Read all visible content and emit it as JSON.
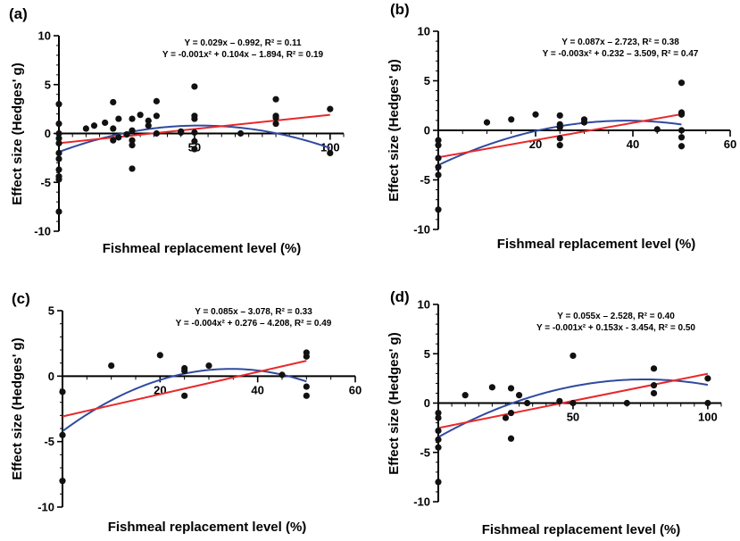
{
  "colors": {
    "linear": "#e8282a",
    "quadratic": "#2f4aa0",
    "points": "#111111",
    "axis": "#000000"
  },
  "chart_data": [
    {
      "panel": "(a)",
      "type": "scatter",
      "xlabel": "Fishmeal replacement level (%)",
      "ylabel": "Effect size (Hedges' g)",
      "xlim": [
        0,
        105
      ],
      "ylim": [
        -10,
        10
      ],
      "xticks": [
        50,
        100
      ],
      "yticks": [
        -10,
        -5,
        0,
        5,
        10
      ],
      "equations": [
        "Y = 0.029x – 0.992, R² = 0.11",
        "Y = -0.001x² + 0.104x – 1.894, R² = 0.19"
      ],
      "linear": {
        "a": 0.029,
        "b": -0.992
      },
      "quadratic": {
        "a": -0.001,
        "b": 0.104,
        "c": -1.894
      },
      "points": [
        [
          0,
          3
        ],
        [
          0,
          1
        ],
        [
          0,
          0
        ],
        [
          0,
          -0.5
        ],
        [
          0,
          -1
        ],
        [
          0,
          -2
        ],
        [
          0,
          -2.6
        ],
        [
          0,
          -3.7
        ],
        [
          0,
          -4.4
        ],
        [
          0,
          -4.7
        ],
        [
          0,
          -8
        ],
        [
          10,
          0.5
        ],
        [
          13,
          0.8
        ],
        [
          17,
          1.1
        ],
        [
          20,
          3.2
        ],
        [
          20,
          -0.7
        ],
        [
          20,
          0.5
        ],
        [
          22,
          1.5
        ],
        [
          22,
          -0.4
        ],
        [
          25,
          -0.1
        ],
        [
          27,
          1.5
        ],
        [
          27,
          0.3
        ],
        [
          27,
          -0.7
        ],
        [
          27,
          -1.2
        ],
        [
          27,
          -3.6
        ],
        [
          30,
          1.9
        ],
        [
          33,
          1.3
        ],
        [
          33,
          0.8
        ],
        [
          36,
          3.3
        ],
        [
          36,
          1.8
        ],
        [
          36,
          0
        ],
        [
          45,
          0.1
        ],
        [
          45,
          0.2
        ],
        [
          50,
          4.8
        ],
        [
          50,
          1.8
        ],
        [
          50,
          1.5
        ],
        [
          50,
          0.1
        ],
        [
          50,
          -0.8
        ],
        [
          50,
          -1.6
        ],
        [
          67,
          0
        ],
        [
          80,
          3.5
        ],
        [
          80,
          1.8
        ],
        [
          80,
          1.6
        ],
        [
          80,
          1
        ],
        [
          100,
          2.5
        ],
        [
          100,
          -2
        ]
      ]
    },
    {
      "panel": "(b)",
      "type": "scatter",
      "xlabel": "Fishmeal replacement level (%)",
      "ylabel": "Effect size (Hedges' g)",
      "xlim": [
        0,
        60
      ],
      "ylim": [
        -10,
        10
      ],
      "xticks": [
        20,
        40,
        60
      ],
      "yticks": [
        -10,
        -5,
        0,
        5,
        10
      ],
      "equations": [
        "Y = 0.087x – 2.723, R² = 0.38",
        "Y = -0.003x² + 0.232 – 3.509, R² = 0.47"
      ],
      "linear": {
        "a": 0.087,
        "b": -2.723
      },
      "quadratic": {
        "a": -0.003,
        "b": 0.232,
        "c": -3.509
      },
      "points": [
        [
          0,
          -1
        ],
        [
          0,
          -1.5
        ],
        [
          0,
          -2.8
        ],
        [
          0,
          -3.7
        ],
        [
          0,
          -4.5
        ],
        [
          0,
          -8
        ],
        [
          10,
          0.8
        ],
        [
          15,
          1.1
        ],
        [
          20,
          1.6
        ],
        [
          25,
          1.5
        ],
        [
          25,
          0.6
        ],
        [
          25,
          0.3
        ],
        [
          25,
          -0.8
        ],
        [
          25,
          -1.5
        ],
        [
          30,
          1.1
        ],
        [
          30,
          0.8
        ],
        [
          45,
          0.1
        ],
        [
          50,
          4.8
        ],
        [
          50,
          1.8
        ],
        [
          50,
          1.6
        ],
        [
          50,
          0
        ],
        [
          50,
          -0.7
        ],
        [
          50,
          -1.6
        ]
      ]
    },
    {
      "panel": "(c)",
      "type": "scatter",
      "xlabel": "Fishmeal replacement level (%)",
      "ylabel": "Effect size (Hedges' g)",
      "xlim": [
        0,
        60
      ],
      "ylim": [
        -10,
        5
      ],
      "xticks": [
        20,
        40,
        60
      ],
      "yticks": [
        -10,
        -5,
        0,
        5
      ],
      "equations": [
        "Y = 0.085x – 3.078, R² = 0.33",
        "Y = -0.004x² + 0.276 – 4.208, R² = 0.49"
      ],
      "linear": {
        "a": 0.085,
        "b": -3.078
      },
      "quadratic": {
        "a": -0.004,
        "b": 0.276,
        "c": -4.208
      },
      "points": [
        [
          0,
          -1.2
        ],
        [
          0,
          -4.5
        ],
        [
          0,
          -8
        ],
        [
          10,
          0.8
        ],
        [
          20,
          1.6
        ],
        [
          25,
          0.6
        ],
        [
          25,
          0.4
        ],
        [
          25,
          -1.5
        ],
        [
          30,
          0.8
        ],
        [
          45,
          0.1
        ],
        [
          50,
          1.8
        ],
        [
          50,
          1.5
        ],
        [
          50,
          -0.8
        ],
        [
          50,
          -1.5
        ]
      ]
    },
    {
      "panel": "(d)",
      "type": "scatter",
      "xlabel": "Fishmeal replacement level (%)",
      "ylabel": "Effect size (Hedges' g)",
      "xlim": [
        0,
        105
      ],
      "ylim": [
        -10,
        10
      ],
      "xticks": [
        50,
        100
      ],
      "yticks": [
        -10,
        -5,
        0,
        5,
        10
      ],
      "equations": [
        "Y = 0.055x – 2.528, R² = 0.40",
        "Y = -0.001x² + 0.153x - 3.454, R² = 0.50"
      ],
      "linear": {
        "a": 0.055,
        "b": -2.528
      },
      "quadratic": {
        "a": -0.001,
        "b": 0.153,
        "c": -3.454
      },
      "points": [
        [
          0,
          -1
        ],
        [
          0,
          -1.5
        ],
        [
          0,
          -2.8
        ],
        [
          0,
          -3.7
        ],
        [
          0,
          -4.5
        ],
        [
          0,
          -8
        ],
        [
          10,
          0.8
        ],
        [
          20,
          1.6
        ],
        [
          25,
          -1.5
        ],
        [
          27,
          1.5
        ],
        [
          27,
          -1
        ],
        [
          27,
          -3.6
        ],
        [
          30,
          0.8
        ],
        [
          33,
          0
        ],
        [
          45,
          0.2
        ],
        [
          50,
          4.8
        ],
        [
          50,
          0
        ],
        [
          70,
          0
        ],
        [
          80,
          3.5
        ],
        [
          80,
          1.8
        ],
        [
          80,
          1
        ],
        [
          100,
          2.5
        ],
        [
          100,
          0
        ]
      ]
    }
  ]
}
